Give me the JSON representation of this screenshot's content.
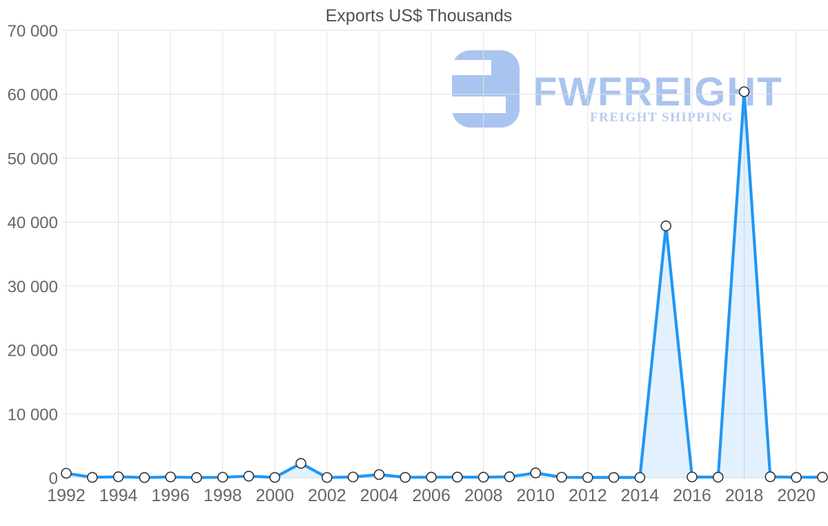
{
  "chart_data": {
    "type": "area",
    "title": "Exports US$ Thousands",
    "xlabel": "",
    "ylabel": "",
    "x": [
      1992,
      1993,
      1994,
      1995,
      1996,
      1997,
      1998,
      1999,
      2000,
      2001,
      2002,
      2003,
      2004,
      2005,
      2006,
      2007,
      2008,
      2009,
      2010,
      2011,
      2012,
      2013,
      2014,
      2015,
      2016,
      2017,
      2018,
      2019,
      2020,
      2021
    ],
    "series": [
      {
        "name": "Exports US$ Thousands",
        "values": [
          700,
          60,
          150,
          30,
          120,
          30,
          80,
          250,
          50,
          2250,
          40,
          120,
          500,
          60,
          90,
          100,
          90,
          150,
          760,
          80,
          40,
          50,
          40,
          39400,
          120,
          90,
          60400,
          150,
          60,
          90
        ]
      }
    ],
    "ylim": [
      0,
      70000
    ],
    "y_tick_values": [
      0,
      10000,
      20000,
      30000,
      40000,
      50000,
      60000,
      70000
    ],
    "y_tick_labels": [
      "0",
      "10 000",
      "20 000",
      "30 000",
      "40 000",
      "50 000",
      "60 000",
      "70 000"
    ],
    "x_tick_values": [
      1992,
      1994,
      1996,
      1998,
      2000,
      2002,
      2004,
      2006,
      2008,
      2010,
      2012,
      2014,
      2016,
      2018,
      2020
    ],
    "x_tick_labels": [
      "1992",
      "1994",
      "1996",
      "1998",
      "2000",
      "2002",
      "2004",
      "2006",
      "2008",
      "2010",
      "2012",
      "2014",
      "2016",
      "2018",
      "2020"
    ],
    "grid": true,
    "legend": false,
    "colors": {
      "line": "#2196f3",
      "fill": "rgba(33,150,243,0.13)",
      "marker_fill": "#ffffff",
      "marker_stroke": "#333333",
      "grid": "#e2e2e2",
      "label": "#666666",
      "title": "#4f4f4f"
    }
  },
  "watermark": {
    "brand": "FWFREIGHT",
    "tagline": "FREIGHT SHIPPING",
    "logo_color": "#a9c4ef",
    "brand_color": "#a9c4ef",
    "tagline_color": "#b7cbf3"
  }
}
